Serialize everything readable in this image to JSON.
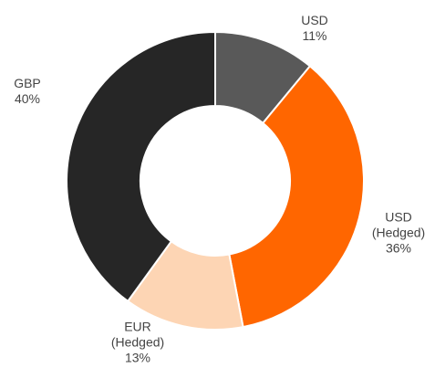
{
  "chart_data": {
    "type": "donut",
    "categories": [
      "USD",
      "USD (Hedged)",
      "EUR (Hedged)",
      "GBP"
    ],
    "values": [
      11,
      36,
      13,
      40
    ],
    "value_labels": [
      "11%",
      "36%",
      "13%",
      "40%"
    ],
    "colors": [
      "#595959",
      "#ff6600",
      "#fdd5b4",
      "#262626"
    ]
  }
}
